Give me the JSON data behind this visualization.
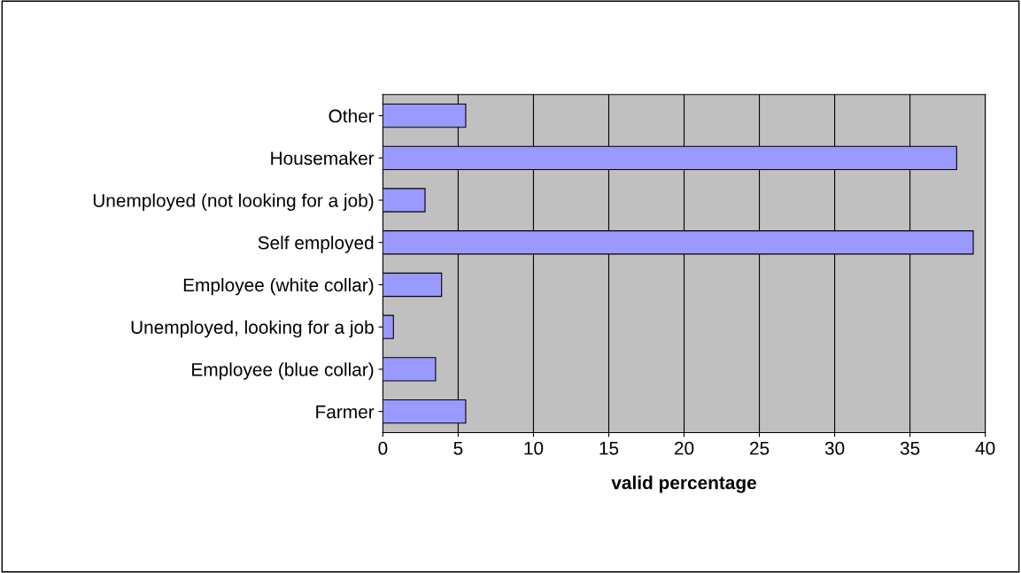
{
  "chart_data": {
    "type": "bar",
    "orientation": "horizontal",
    "categories": [
      "Other",
      "Housemaker",
      "Unemployed (not looking for a job)",
      "Self employed",
      "Employee (white collar)",
      "Unemployed, looking for a job",
      "Employee (blue collar)",
      "Farmer"
    ],
    "values": [
      5.5,
      38.1,
      2.8,
      39.2,
      3.9,
      0.7,
      3.5,
      5.5
    ],
    "color": "#9999ff",
    "xlabel": "valid percentage",
    "xlim": [
      0,
      40
    ],
    "xticks": [
      0,
      5,
      10,
      15,
      20,
      25,
      30,
      35,
      40
    ],
    "grid": "x"
  }
}
